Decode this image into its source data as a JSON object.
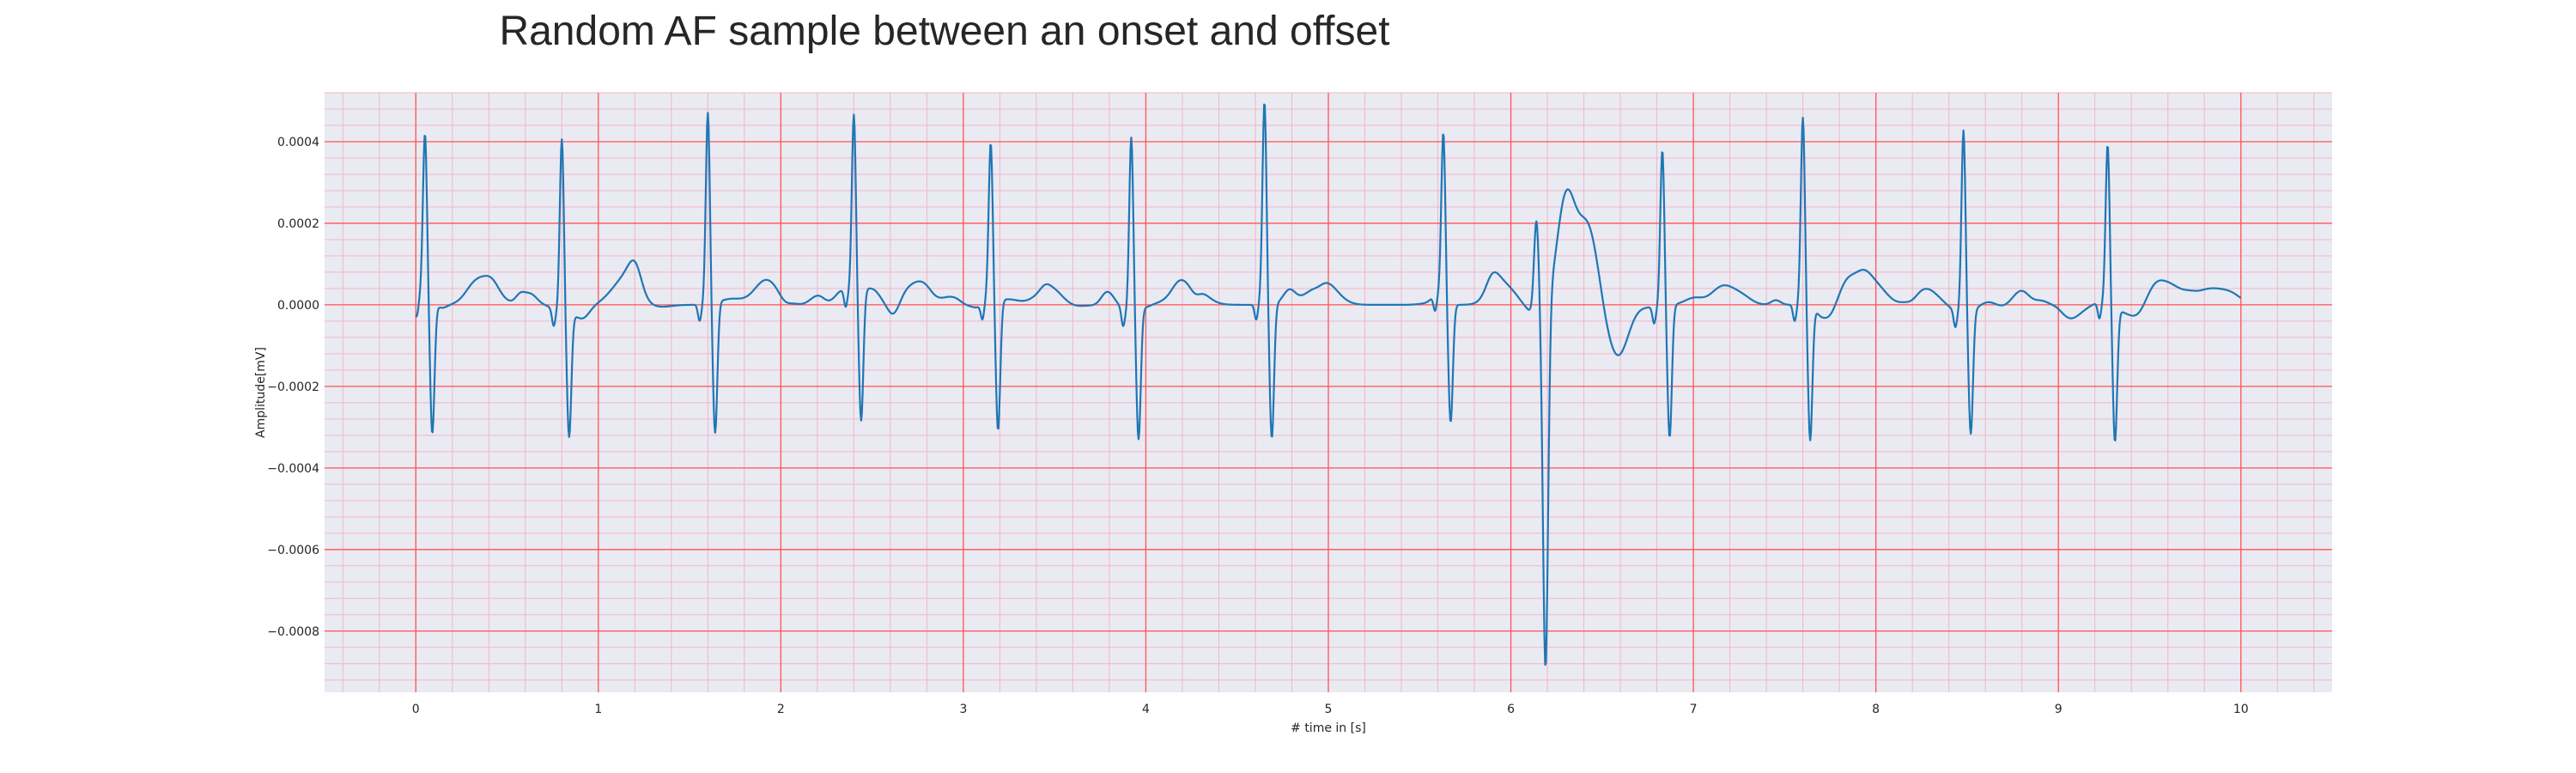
{
  "chart_data": {
    "type": "line",
    "title": "Random AF sample between an onset and offset",
    "xlabel": "# time in [s]",
    "ylabel": "Amplitude[mV]",
    "xlim": [
      -0.5,
      10.5
    ],
    "ylim": [
      -0.00095,
      0.00052
    ],
    "x_ticks": [
      0,
      1,
      2,
      3,
      4,
      5,
      6,
      7,
      8,
      9,
      10
    ],
    "x_tick_labels": [
      "0",
      "1",
      "2",
      "3",
      "4",
      "5",
      "6",
      "7",
      "8",
      "9",
      "10"
    ],
    "y_ticks": [
      0.0004,
      0.0002,
      0.0,
      -0.0002,
      -0.0004,
      -0.0006,
      -0.0008
    ],
    "y_tick_labels": [
      "0.0004",
      "0.0002",
      "0.0000",
      "−0.0002",
      "−0.0004",
      "−0.0006",
      "−0.0008"
    ],
    "grid": true,
    "minor_grid": true,
    "background_color": "#eaeaf2",
    "major_grid_color": "#ff5555",
    "minor_grid_color": "#f2b6c6",
    "line_color": "#1f77b4",
    "sampling_rate_hz": 250,
    "beats": [
      {
        "t": 0.05,
        "r": 0.00036,
        "s": -0.00033
      },
      {
        "t": 0.8,
        "r": 0.0004,
        "s": -0.0003
      },
      {
        "t": 1.6,
        "r": 0.00044,
        "s": -0.00032
      },
      {
        "t": 2.4,
        "r": 0.00041,
        "s": -0.00032
      },
      {
        "t": 3.15,
        "r": 0.00035,
        "s": -0.00032
      },
      {
        "t": 3.92,
        "r": 0.0004,
        "s": -0.00032
      },
      {
        "t": 4.65,
        "r": 0.00046,
        "s": -0.00033
      },
      {
        "t": 5.63,
        "r": 0.00038,
        "s": -0.00029
      },
      {
        "t": 6.83,
        "r": 0.00036,
        "s": -0.00032
      },
      {
        "t": 7.6,
        "r": 0.00043,
        "s": -0.00033
      },
      {
        "t": 8.48,
        "r": 0.00042,
        "s": -0.0003
      },
      {
        "t": 9.27,
        "r": 0.00036,
        "s": -0.00033
      }
    ],
    "ectopic_beat": {
      "t_pre_peak": 6.14,
      "pre_peak": 0.00023,
      "t_trough": 6.19,
      "trough": -0.00089,
      "t_hump": 6.3,
      "hump": 0.00031,
      "t_dip": 6.58,
      "dip": -0.00014
    },
    "series": [
      {
        "x_start": 0.0,
        "x_end": 10.0
      }
    ]
  }
}
